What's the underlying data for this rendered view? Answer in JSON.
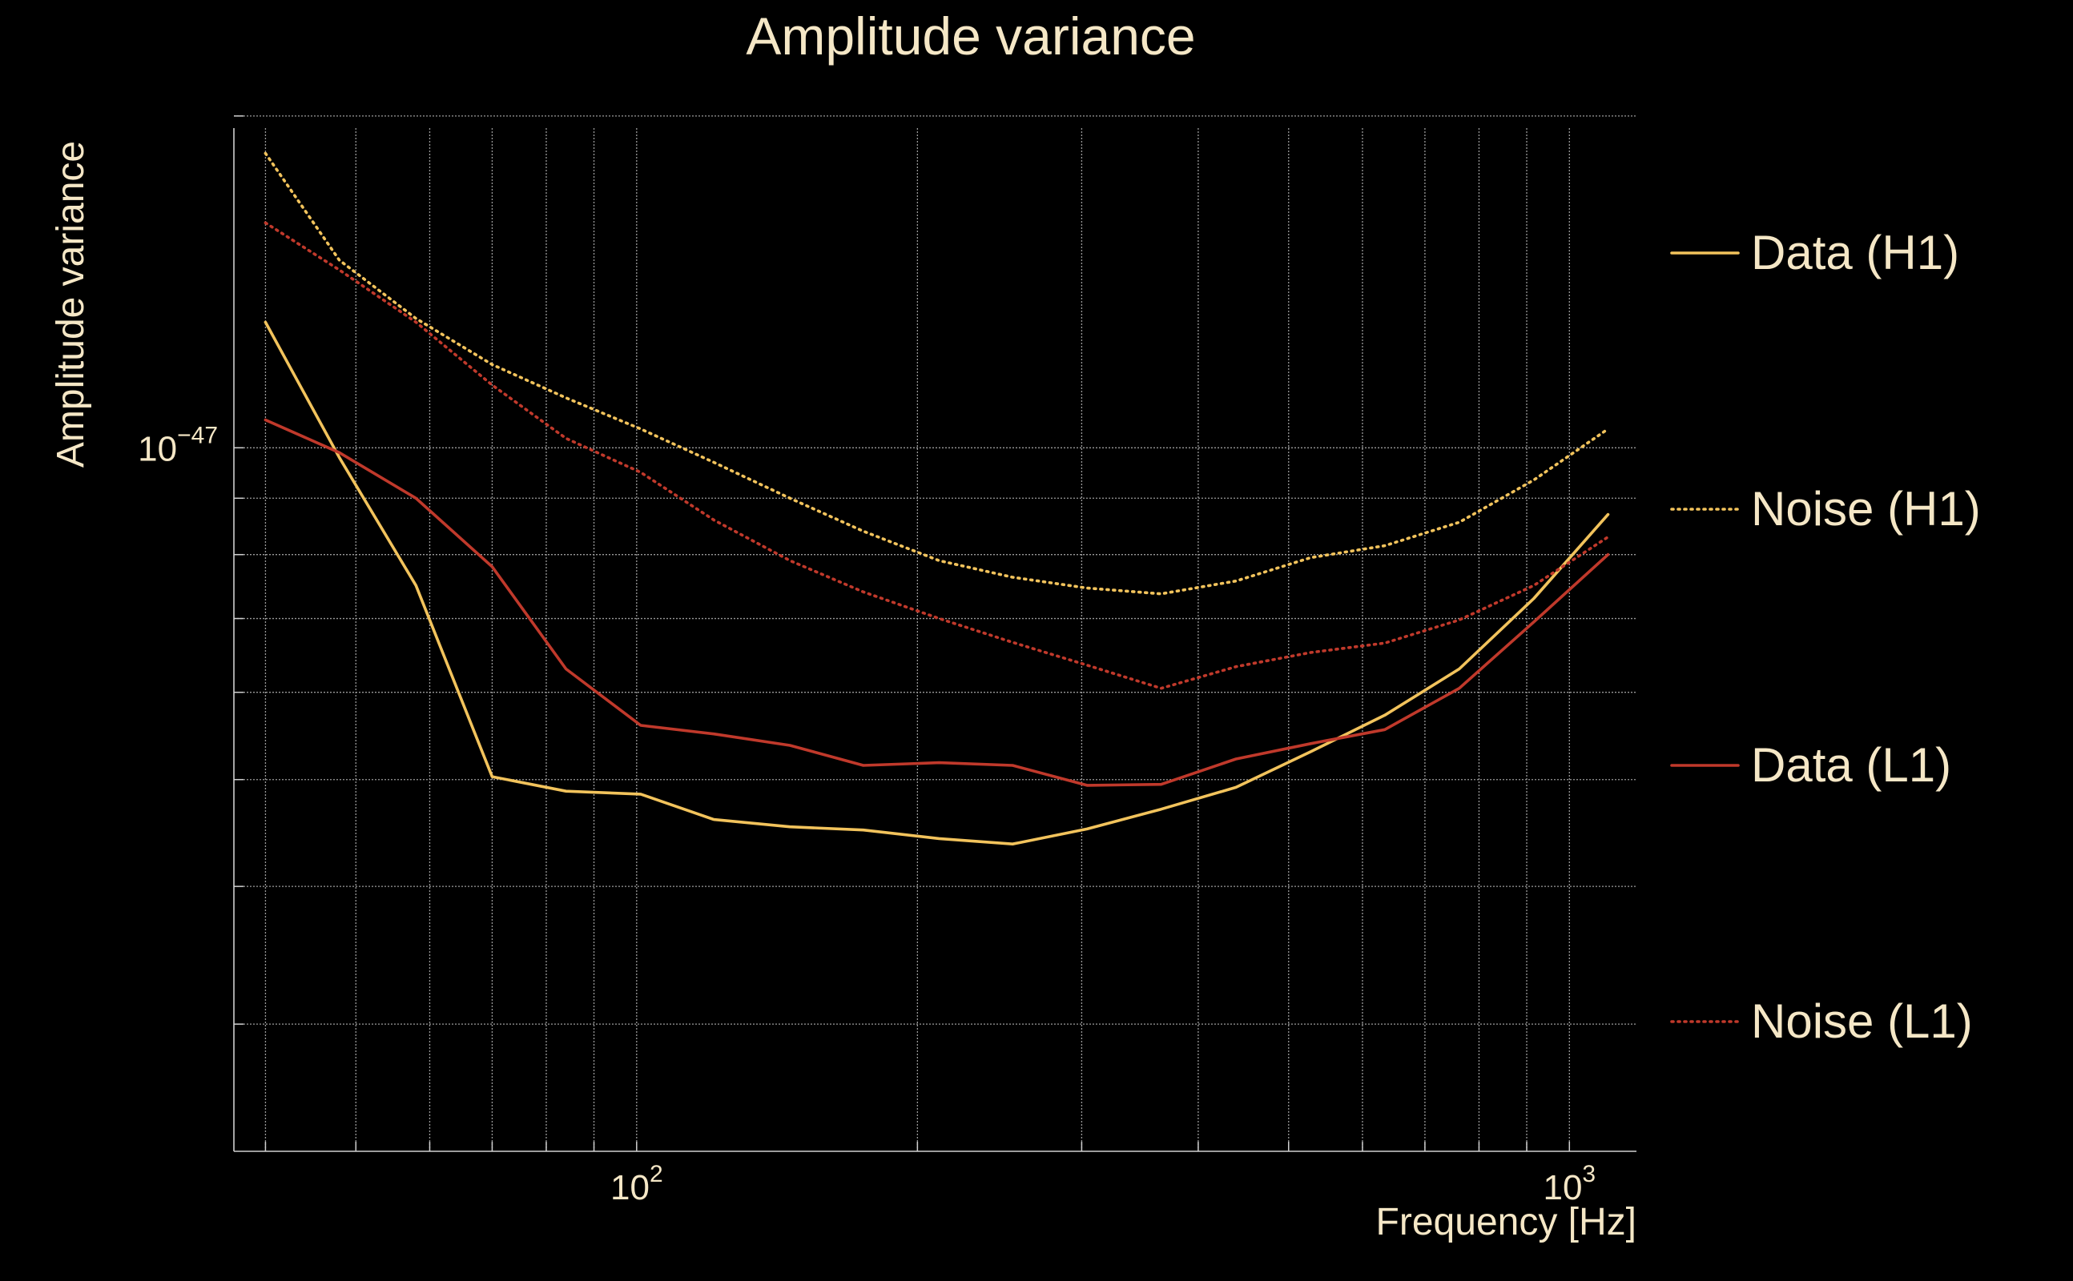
{
  "colors": {
    "background": "#000000",
    "text": "#f5e7c6",
    "grid": "#9a9a9a",
    "axis": "#cfcfcf",
    "data_h1": "#f2c35c",
    "noise_h1": "#f2c35c",
    "data_l1": "#c0392b",
    "noise_l1": "#c0392b"
  },
  "chart_data": {
    "type": "line",
    "title": "Amplitude variance",
    "xlabel": "Frequency [Hz]",
    "ylabel": "Amplitude variance",
    "xscale": "log",
    "yscale": "log",
    "xlim": [
      37,
      1180
    ],
    "ylim": [
      2.3e-48,
      1.95e-47
    ],
    "grid": true,
    "legend_position": "right",
    "x_tick_labels": [
      {
        "value": 100,
        "base": "10",
        "exp": "2"
      },
      {
        "value": 1000,
        "base": "10",
        "exp": "3"
      }
    ],
    "y_tick_labels": [
      {
        "value": 1e-47,
        "base": "10",
        "exp": "−47"
      }
    ],
    "x_minor_ticks": [
      40,
      50,
      60,
      70,
      80,
      90,
      200,
      300,
      400,
      500,
      600,
      700,
      800,
      900
    ],
    "y_minor_ticks": [
      3e-48,
      4e-48,
      5e-48,
      6e-48,
      7e-48,
      8e-48,
      9e-48,
      2e-47
    ],
    "series": [
      {
        "name": "Data (H1)",
        "style": "solid",
        "color": "#f2c35c",
        "x": [
          40,
          48,
          58,
          70,
          84,
          101,
          121,
          146,
          175,
          211,
          253,
          304,
          365,
          439,
          528,
          634,
          762,
          916,
          1100
        ],
        "y": [
          1.3e-47,
          9.8e-48,
          7.5e-48,
          5.03e-48,
          4.88e-48,
          4.85e-48,
          4.6e-48,
          4.53e-48,
          4.5e-48,
          4.42e-48,
          4.37e-48,
          4.51e-48,
          4.7e-48,
          4.92e-48,
          5.3e-48,
          5.72e-48,
          6.3e-48,
          7.3e-48,
          8.7e-48
        ]
      },
      {
        "name": "Noise (H1)",
        "style": "dotted",
        "color": "#f2c35c",
        "x": [
          40,
          48,
          58,
          70,
          84,
          101,
          121,
          146,
          175,
          211,
          253,
          304,
          365,
          439,
          528,
          634,
          762,
          916,
          1100
        ],
        "y": [
          1.85e-47,
          1.48e-47,
          1.31e-47,
          1.19e-47,
          1.11e-47,
          1.04e-47,
          9.7e-48,
          9e-48,
          8.4e-48,
          7.9e-48,
          7.63e-48,
          7.46e-48,
          7.37e-48,
          7.57e-48,
          7.95e-48,
          8.15e-48,
          8.56e-48,
          9.35e-48,
          1.04e-47
        ]
      },
      {
        "name": "Data (L1)",
        "style": "solid",
        "color": "#c0392b",
        "x": [
          40,
          48,
          58,
          70,
          84,
          101,
          121,
          146,
          175,
          211,
          253,
          304,
          365,
          439,
          528,
          634,
          762,
          916,
          1100
        ],
        "y": [
          1.06e-47,
          9.9e-48,
          9e-48,
          7.8e-48,
          6.3e-48,
          5.6e-48,
          5.5e-48,
          5.37e-48,
          5.15e-48,
          5.18e-48,
          5.15e-48,
          4.94e-48,
          4.95e-48,
          5.22e-48,
          5.39e-48,
          5.55e-48,
          6.05e-48,
          6.95e-48,
          8e-48
        ]
      },
      {
        "name": "Noise (L1)",
        "style": "dotted",
        "color": "#c0392b",
        "x": [
          40,
          48,
          58,
          70,
          84,
          101,
          121,
          146,
          175,
          211,
          253,
          304,
          365,
          439,
          528,
          634,
          762,
          916,
          1100
        ],
        "y": [
          1.6e-47,
          1.45e-47,
          1.3e-47,
          1.14e-47,
          1.02e-47,
          9.5e-48,
          8.6e-48,
          7.9e-48,
          7.4e-48,
          7e-48,
          6.66e-48,
          6.35e-48,
          6.05e-48,
          6.33e-48,
          6.52e-48,
          6.65e-48,
          6.98e-48,
          7.5e-48,
          8.3e-48
        ]
      }
    ]
  }
}
